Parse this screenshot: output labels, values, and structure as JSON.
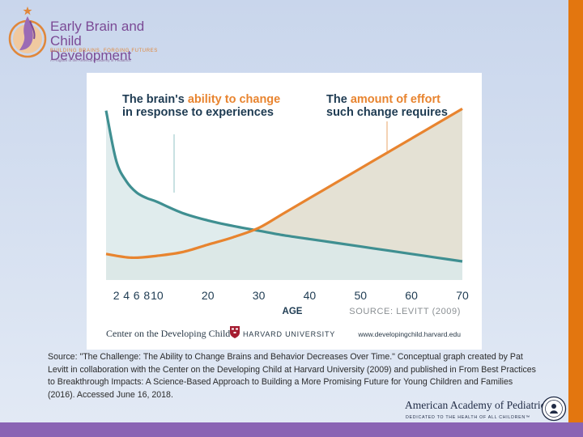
{
  "header": {
    "logo_title_line1": "Early Brain and",
    "logo_title_line2": "Child Development",
    "logo_subtitle": "BUILDING BRAINS, FORGING FUTURES",
    "logo_program_note": "A Program of the American Academy of Pediatrics"
  },
  "colors": {
    "ability_line": "#3f8f91",
    "ability_fill": "#dbe9ea",
    "effort_line": "#e8842f",
    "effort_fill": "#e4e1d4",
    "orange_text": "#e8842f",
    "dark_text": "#1e3b52",
    "frame_orange": "#e3760f",
    "frame_purple": "#8a64b4"
  },
  "chart_data": {
    "type": "line",
    "title_left": {
      "line1_plain": "The brain's ",
      "line1_accent": "ability to change",
      "line2": "in response to experiences"
    },
    "title_right": {
      "line1_plain": "The ",
      "line1_accent": "amount of effort",
      "line2": "such change requires"
    },
    "xlabel": "AGE",
    "source_note": "SOURCE: LEVITT (2009)",
    "x_ticks": [
      "2",
      "4",
      "6",
      "8",
      "10",
      "20",
      "30",
      "40",
      "50",
      "60",
      "70"
    ],
    "xlim": [
      0,
      70
    ],
    "y_axis_shown": false,
    "y_scale": "relative (unlabeled)",
    "series": [
      {
        "name": "ability to change",
        "x": [
          0,
          2,
          4,
          6,
          8,
          10,
          15,
          20,
          25,
          30,
          35,
          40,
          45,
          50,
          55,
          60,
          65,
          70
        ],
        "values": [
          0.91,
          0.64,
          0.53,
          0.47,
          0.44,
          0.42,
          0.36,
          0.32,
          0.29,
          0.265,
          0.24,
          0.22,
          0.2,
          0.18,
          0.16,
          0.14,
          0.12,
          0.1
        ]
      },
      {
        "name": "amount of effort",
        "x": [
          0,
          5,
          10,
          15,
          20,
          25,
          30,
          35,
          40,
          45,
          50,
          55,
          60,
          65,
          70
        ],
        "values": [
          0.14,
          0.12,
          0.13,
          0.15,
          0.19,
          0.23,
          0.28,
          0.36,
          0.44,
          0.52,
          0.6,
          0.68,
          0.76,
          0.84,
          0.92
        ]
      }
    ]
  },
  "panel_footer": {
    "center_name": "Center on the Developing Child",
    "university": "HARVARD UNIVERSITY",
    "url": "www.developingchild.harvard.edu"
  },
  "caption": {
    "text": "Source: \"The Challenge: The Ability to Change Brains and Behavior Decreases Over Time.\" Conceptual graph created by Pat Levitt in collaboration with the Center on the Developing Child at Harvard University (2009) and published in From Best Practices to Breakthrough Impacts: A Science-Based Approach to Building a More Promising Future for Young Children and Families (2016). Accessed June 16, 2018."
  },
  "footer": {
    "aap_name": "American Academy of Pediatrics",
    "aap_tagline": "DEDICATED TO THE HEALTH OF ALL CHILDREN™"
  }
}
